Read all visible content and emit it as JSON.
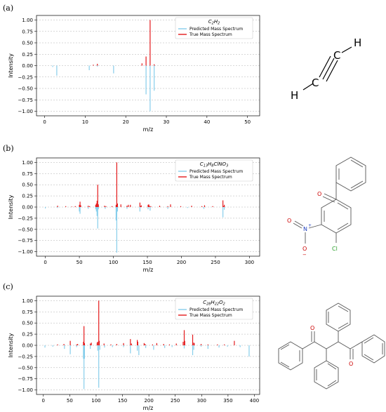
{
  "panel_labels": [
    "(a)",
    "(b)",
    "(c)"
  ],
  "colors": {
    "predicted": "#87ceeb",
    "true": "#e41a1c",
    "grid": "#b0b0b0",
    "atom_text": "#000000",
    "oxygen": "#cc0000",
    "nitrogen": "#1f3fbf",
    "chlorine": "#2ca02c"
  },
  "chart_data": [
    {
      "type": "bar",
      "title": "C2H2",
      "xlabel": "m/z",
      "ylabel": "Intensity",
      "xlim": [
        -2,
        53
      ],
      "ylim": [
        -1.1,
        1.1
      ],
      "xticks": [
        0,
        10,
        20,
        30,
        40,
        50
      ],
      "yticks": [
        1.0,
        0.75,
        0.5,
        0.25,
        0.0,
        -0.25,
        -0.5,
        -0.75,
        -1.0
      ],
      "ytick_labels": [
        "1.00",
        "0.75",
        "0.50",
        "0.25",
        "0.00",
        "−0.25",
        "−0.50",
        "−0.75",
        "−1.00"
      ],
      "legend": [
        "Predicted Mass Spectrum",
        "True Mass Spectrum"
      ],
      "legend_position": "top-right",
      "grid": "horizontal dashed",
      "series": [
        {
          "name": "Predicted Mass Spectrum",
          "x": [
            2,
            3,
            11,
            13,
            17,
            25,
            26,
            27
          ],
          "values": [
            -0.03,
            -0.22,
            -0.1,
            -0.02,
            -0.17,
            -0.63,
            -1.0,
            -0.55
          ]
        },
        {
          "name": "True Mass Spectrum",
          "x": [
            12,
            13,
            24,
            25,
            26,
            27
          ],
          "values": [
            0.02,
            0.04,
            0.05,
            0.2,
            1.0,
            0.03
          ]
        }
      ]
    },
    {
      "type": "bar",
      "title": "C13H8ClNO3",
      "xlabel": "m/z",
      "ylabel": "Intensity",
      "xlim": [
        -13,
        315
      ],
      "ylim": [
        -1.1,
        1.1
      ],
      "xticks": [
        0,
        50,
        100,
        150,
        200,
        250,
        300
      ],
      "yticks": [
        1.0,
        0.75,
        0.5,
        0.25,
        0.0,
        -0.25,
        -0.5,
        -0.75,
        -1.0
      ],
      "ytick_labels": [
        "1.00",
        "0.75",
        "0.50",
        "0.25",
        "0.00",
        "−0.25",
        "−0.50",
        "−0.75",
        "−1.00"
      ],
      "legend": [
        "Predicted Mass Spectrum",
        "True Mass Spectrum"
      ],
      "legend_position": "top-right",
      "grid": "horizontal dashed",
      "series": [
        {
          "name": "Predicted Mass Spectrum",
          "x": [
            0,
            18,
            50,
            51,
            63,
            74,
            75,
            76,
            77,
            78,
            88,
            104,
            105,
            106,
            120,
            139,
            151,
            154,
            180,
            209,
            233,
            261,
            263
          ],
          "values": [
            -0.03,
            -0.02,
            -0.1,
            -0.15,
            -0.04,
            -0.05,
            -0.1,
            -0.2,
            -0.48,
            -0.05,
            -0.04,
            -0.3,
            -1.02,
            -0.1,
            -0.04,
            -0.1,
            -0.05,
            -0.08,
            -0.04,
            -0.02,
            -0.04,
            -0.23,
            -0.06
          ]
        },
        {
          "name": "True Mass Spectrum",
          "x": [
            18,
            30,
            39,
            44,
            50,
            51,
            52,
            63,
            65,
            74,
            75,
            76,
            77,
            78,
            87,
            89,
            98,
            104,
            105,
            106,
            111,
            120,
            122,
            125,
            139,
            140,
            141,
            151,
            152,
            153,
            155,
            168,
            180,
            184,
            199,
            215,
            230,
            234,
            246,
            261,
            262,
            263
          ],
          "values": [
            0.03,
            0.02,
            0.01,
            0.02,
            0.05,
            0.12,
            0.04,
            0.03,
            0.02,
            0.05,
            0.08,
            0.14,
            0.5,
            0.06,
            0.03,
            0.02,
            0.02,
            0.05,
            1.0,
            0.08,
            0.06,
            0.03,
            0.05,
            0.05,
            0.1,
            0.02,
            0.04,
            0.05,
            0.06,
            0.03,
            0.02,
            0.03,
            0.02,
            0.06,
            0.02,
            0.03,
            0.02,
            0.04,
            0.02,
            0.15,
            0.02,
            0.05
          ]
        }
      ]
    },
    {
      "type": "bar",
      "title": "C28H22O2",
      "xlabel": "m/z",
      "ylabel": "Intensity",
      "xlim": [
        -13,
        410
      ],
      "ylim": [
        -1.1,
        1.1
      ],
      "xticks": [
        0,
        50,
        100,
        150,
        200,
        250,
        300,
        350,
        400
      ],
      "yticks": [
        1.0,
        0.75,
        0.5,
        0.25,
        0.0,
        -0.25,
        -0.5,
        -0.75,
        -1.0
      ],
      "ytick_labels": [
        "1.00",
        "0.75",
        "0.50",
        "0.25",
        "0.00",
        "−0.25",
        "−0.50",
        "−0.75",
        "−1.00"
      ],
      "legend": [
        "Predicted Mass Spectrum",
        "True Mass Spectrum"
      ],
      "legend_position": "top-right",
      "grid": "horizontal dashed",
      "series": [
        {
          "name": "Predicted Mass Spectrum",
          "x": [
            3,
            18,
            40,
            51,
            63,
            76,
            77,
            78,
            89,
            103,
            105,
            107,
            116,
            131,
            152,
            165,
            178,
            181,
            194,
            209,
            230,
            244,
            267,
            283,
            285,
            299,
            312,
            333,
            349,
            373,
            390
          ],
          "values": [
            -0.05,
            -0.03,
            -0.08,
            -0.2,
            -0.04,
            -0.3,
            -0.98,
            -0.3,
            -0.08,
            -0.12,
            -0.95,
            -0.1,
            -0.05,
            -0.04,
            -0.04,
            -0.18,
            -0.12,
            -0.22,
            -0.06,
            -0.1,
            -0.06,
            -0.04,
            -0.07,
            -0.22,
            -0.1,
            -0.03,
            -0.08,
            -0.05,
            -0.03,
            -0.04,
            -0.25
          ]
        },
        {
          "name": "True Mass Spectrum",
          "x": [
            27,
            39,
            51,
            63,
            65,
            76,
            77,
            78,
            89,
            91,
            102,
            103,
            105,
            106,
            115,
            128,
            139,
            152,
            165,
            167,
            178,
            179,
            191,
            193,
            207,
            215,
            228,
            239,
            252,
            265,
            267,
            268,
            283,
            285,
            286,
            299,
            312,
            330,
            343,
            362
          ],
          "values": [
            0.02,
            0.03,
            0.1,
            0.02,
            0.03,
            0.08,
            0.43,
            0.05,
            0.04,
            0.06,
            0.06,
            0.08,
            1.0,
            0.1,
            0.04,
            0.02,
            0.03,
            0.05,
            0.14,
            0.04,
            0.12,
            0.08,
            0.05,
            0.03,
            0.02,
            0.05,
            0.03,
            0.02,
            0.04,
            0.08,
            0.34,
            0.1,
            0.24,
            0.06,
            0.05,
            0.03,
            0.02,
            0.02,
            0.02,
            0.1
          ]
        }
      ]
    }
  ],
  "molecules": {
    "a": {
      "atoms": [
        "H",
        "C",
        "C",
        "H"
      ]
    },
    "b": {
      "atoms": [
        "O",
        "N",
        "O",
        "Cl"
      ],
      "charges": [
        "+",
        "−"
      ]
    },
    "c": {
      "atoms": [
        "O",
        "O"
      ]
    }
  }
}
